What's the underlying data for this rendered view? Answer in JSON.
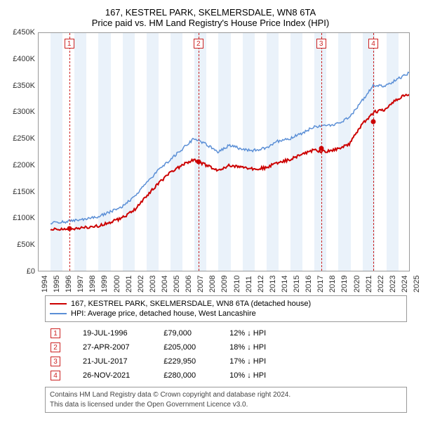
{
  "title_line1": "167, KESTREL PARK, SKELMERSDALE, WN8 6TA",
  "title_line2": "Price paid vs. HM Land Registry's House Price Index (HPI)",
  "chart": {
    "type": "line",
    "background_color": "#ffffff",
    "band_color": "#eaf2fa",
    "axis_color": "#999999",
    "x_years": [
      1994,
      1995,
      1996,
      1997,
      1998,
      1999,
      2000,
      2001,
      2002,
      2003,
      2004,
      2005,
      2006,
      2007,
      2008,
      2009,
      2010,
      2011,
      2012,
      2013,
      2014,
      2015,
      2016,
      2017,
      2018,
      2019,
      2020,
      2021,
      2022,
      2023,
      2024,
      2025
    ],
    "ylim": [
      0,
      450000
    ],
    "ytick_step": 50000,
    "y_tick_labels": [
      "£0",
      "£50K",
      "£100K",
      "£150K",
      "£200K",
      "£250K",
      "£300K",
      "£350K",
      "£400K",
      "£450K"
    ],
    "series": [
      {
        "name": "167, KESTREL PARK, SKELMERSDALE, WN8 6TA (detached house)",
        "color": "#cc0000",
        "width": 2,
        "y_by_year": {
          "1995": 78000,
          "1996": 79000,
          "1997": 79000,
          "1998": 82000,
          "1999": 85000,
          "2000": 92000,
          "2001": 100000,
          "2002": 115000,
          "2003": 140000,
          "2004": 165000,
          "2005": 185000,
          "2006": 200000,
          "2007": 210000,
          "2008": 200000,
          "2009": 190000,
          "2010": 200000,
          "2011": 195000,
          "2012": 193000,
          "2013": 195000,
          "2014": 205000,
          "2015": 210000,
          "2016": 220000,
          "2017": 228000,
          "2018": 225000,
          "2019": 230000,
          "2020": 240000,
          "2021": 275000,
          "2022": 300000,
          "2023": 305000,
          "2024": 325000,
          "2025": 335000
        }
      },
      {
        "name": "HPI: Average price, detached house, West Lancashire",
        "color": "#5b8fd6",
        "width": 1.5,
        "y_by_year": {
          "1995": 90000,
          "1996": 92000,
          "1997": 95000,
          "1998": 98000,
          "1999": 103000,
          "2000": 112000,
          "2001": 122000,
          "2002": 140000,
          "2003": 165000,
          "2004": 190000,
          "2005": 210000,
          "2006": 230000,
          "2007": 250000,
          "2008": 240000,
          "2009": 225000,
          "2010": 238000,
          "2011": 230000,
          "2012": 228000,
          "2013": 232000,
          "2014": 245000,
          "2015": 250000,
          "2016": 260000,
          "2017": 272000,
          "2018": 275000,
          "2019": 278000,
          "2020": 290000,
          "2021": 320000,
          "2022": 350000,
          "2023": 350000,
          "2024": 362000,
          "2025": 375000
        }
      }
    ],
    "markers": [
      {
        "n": "1",
        "year": 1996.55,
        "price": 79000
      },
      {
        "n": "2",
        "year": 2007.32,
        "price": 205000
      },
      {
        "n": "3",
        "year": 2017.55,
        "price": 229950
      },
      {
        "n": "4",
        "year": 2021.9,
        "price": 280000
      }
    ]
  },
  "legend": {
    "items": [
      {
        "color": "#cc0000",
        "label": "167, KESTREL PARK, SKELMERSDALE, WN8 6TA (detached house)"
      },
      {
        "color": "#5b8fd6",
        "label": "HPI: Average price, detached house, West Lancashire"
      }
    ]
  },
  "transactions": [
    {
      "n": "1",
      "date": "19-JUL-1996",
      "price": "£79,000",
      "delta": "12% ↓ HPI"
    },
    {
      "n": "2",
      "date": "27-APR-2007",
      "price": "£205,000",
      "delta": "18% ↓ HPI"
    },
    {
      "n": "3",
      "date": "21-JUL-2017",
      "price": "£229,950",
      "delta": "17% ↓ HPI"
    },
    {
      "n": "4",
      "date": "26-NOV-2021",
      "price": "£280,000",
      "delta": "10% ↓ HPI"
    }
  ],
  "footnote_line1": "Contains HM Land Registry data © Crown copyright and database right 2024.",
  "footnote_line2": "This data is licensed under the Open Government Licence v3.0."
}
